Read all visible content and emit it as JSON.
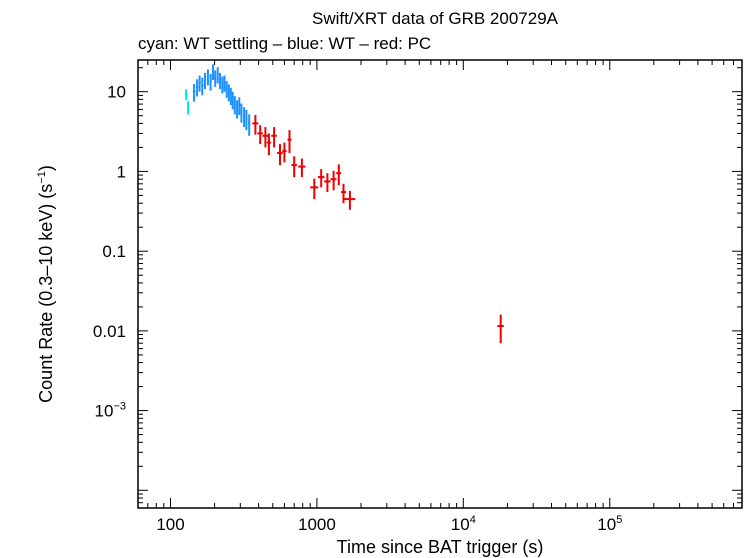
{
  "chart_data": {
    "type": "scatter",
    "title": "Swift/XRT data of GRB 200729A",
    "subtitle": "cyan: WT settling – blue: WT – red: PC",
    "xlabel": "Time since BAT trigger (s)",
    "ylabel": "Count Rate (0.3–10 keV) (s",
    "ylabel_sup": "−1",
    "ylabel_tail": ")",
    "x_scale": "log",
    "y_scale": "log",
    "xlim": [
      60,
      800000
    ],
    "ylim": [
      6e-05,
      25
    ],
    "grid": false,
    "x_ticks": [
      {
        "value": 100,
        "base": "100",
        "sup": ""
      },
      {
        "value": 1000,
        "base": "1000",
        "sup": ""
      },
      {
        "value": 10000,
        "base": "10",
        "sup": "4"
      },
      {
        "value": 100000,
        "base": "10",
        "sup": "5"
      }
    ],
    "y_ticks": [
      {
        "value": 10,
        "base": "10",
        "sup": ""
      },
      {
        "value": 1,
        "base": "1",
        "sup": ""
      },
      {
        "value": 0.1,
        "base": "0.1",
        "sup": ""
      },
      {
        "value": 0.01,
        "base": "0.01",
        "sup": ""
      },
      {
        "value": 0.001,
        "base": "10",
        "sup": "−3"
      }
    ],
    "series": [
      {
        "color": "#00e5ee",
        "points": [
          {
            "x": 128,
            "y": 9.3,
            "xerr": 2,
            "yerr": 1.5
          },
          {
            "x": 132,
            "y": 6.4,
            "xerr": 2,
            "yerr": 1.2
          }
        ]
      },
      {
        "color": "#1e90ff",
        "points": [
          {
            "x": 145,
            "y": 10.0,
            "xerr": 3,
            "yerr": 2.5
          },
          {
            "x": 152,
            "y": 11.5,
            "xerr": 3,
            "yerr": 2.8
          },
          {
            "x": 158,
            "y": 13.0,
            "xerr": 3,
            "yerr": 3.0
          },
          {
            "x": 165,
            "y": 12.0,
            "xerr": 3,
            "yerr": 3.0
          },
          {
            "x": 172,
            "y": 14.0,
            "xerr": 3,
            "yerr": 3.2
          },
          {
            "x": 180,
            "y": 15.5,
            "xerr": 3,
            "yerr": 3.5
          },
          {
            "x": 188,
            "y": 13.5,
            "xerr": 3,
            "yerr": 3.2
          },
          {
            "x": 195,
            "y": 18.0,
            "xerr": 3,
            "yerr": 4.0
          },
          {
            "x": 202,
            "y": 15.0,
            "xerr": 3,
            "yerr": 3.5
          },
          {
            "x": 210,
            "y": 16.5,
            "xerr": 3,
            "yerr": 3.8
          },
          {
            "x": 218,
            "y": 14.0,
            "xerr": 3,
            "yerr": 3.2
          },
          {
            "x": 226,
            "y": 12.5,
            "xerr": 3,
            "yerr": 3.0
          },
          {
            "x": 234,
            "y": 13.0,
            "xerr": 3,
            "yerr": 3.0
          },
          {
            "x": 242,
            "y": 11.0,
            "xerr": 3,
            "yerr": 2.6
          },
          {
            "x": 250,
            "y": 10.0,
            "xerr": 3,
            "yerr": 2.4
          },
          {
            "x": 258,
            "y": 9.0,
            "xerr": 3,
            "yerr": 2.2
          },
          {
            "x": 266,
            "y": 8.0,
            "xerr": 3,
            "yerr": 2.0
          },
          {
            "x": 275,
            "y": 7.0,
            "xerr": 3,
            "yerr": 1.8
          },
          {
            "x": 285,
            "y": 6.2,
            "xerr": 4,
            "yerr": 1.6
          },
          {
            "x": 295,
            "y": 6.8,
            "xerr": 4,
            "yerr": 1.7
          },
          {
            "x": 305,
            "y": 5.6,
            "xerr": 4,
            "yerr": 1.5
          },
          {
            "x": 318,
            "y": 5.0,
            "xerr": 5,
            "yerr": 1.4
          },
          {
            "x": 330,
            "y": 4.6,
            "xerr": 5,
            "yerr": 1.3
          },
          {
            "x": 345,
            "y": 4.0,
            "xerr": 6,
            "yerr": 1.2
          }
        ]
      },
      {
        "color": "#ee0000",
        "points": [
          {
            "x": 380,
            "y": 4.0,
            "xerr": 18,
            "yerr": 1.1
          },
          {
            "x": 410,
            "y": 3.0,
            "xerr": 18,
            "yerr": 0.8
          },
          {
            "x": 445,
            "y": 2.8,
            "xerr": 20,
            "yerr": 0.8
          },
          {
            "x": 470,
            "y": 2.3,
            "xerr": 15,
            "yerr": 0.7
          },
          {
            "x": 510,
            "y": 2.8,
            "xerr": 22,
            "yerr": 0.8
          },
          {
            "x": 560,
            "y": 1.7,
            "xerr": 25,
            "yerr": 0.5
          },
          {
            "x": 600,
            "y": 1.8,
            "xerr": 20,
            "yerr": 0.5
          },
          {
            "x": 650,
            "y": 2.5,
            "xerr": 20,
            "yerr": 0.8
          },
          {
            "x": 700,
            "y": 1.2,
            "xerr": 30,
            "yerr": 0.35
          },
          {
            "x": 790,
            "y": 1.15,
            "xerr": 45,
            "yerr": 0.3
          },
          {
            "x": 960,
            "y": 0.63,
            "xerr": 60,
            "yerr": 0.18
          },
          {
            "x": 1070,
            "y": 0.85,
            "xerr": 55,
            "yerr": 0.22
          },
          {
            "x": 1180,
            "y": 0.75,
            "xerr": 60,
            "yerr": 0.2
          },
          {
            "x": 1300,
            "y": 0.8,
            "xerr": 60,
            "yerr": 0.22
          },
          {
            "x": 1410,
            "y": 0.95,
            "xerr": 55,
            "yerr": 0.28
          },
          {
            "x": 1520,
            "y": 0.55,
            "xerr": 60,
            "yerr": 0.15
          },
          {
            "x": 1680,
            "y": 0.45,
            "xerr": 150,
            "yerr": 0.12
          },
          {
            "x": 18000,
            "y": 0.0115,
            "xerr": 900,
            "yerr": 0.0045
          }
        ]
      }
    ]
  }
}
